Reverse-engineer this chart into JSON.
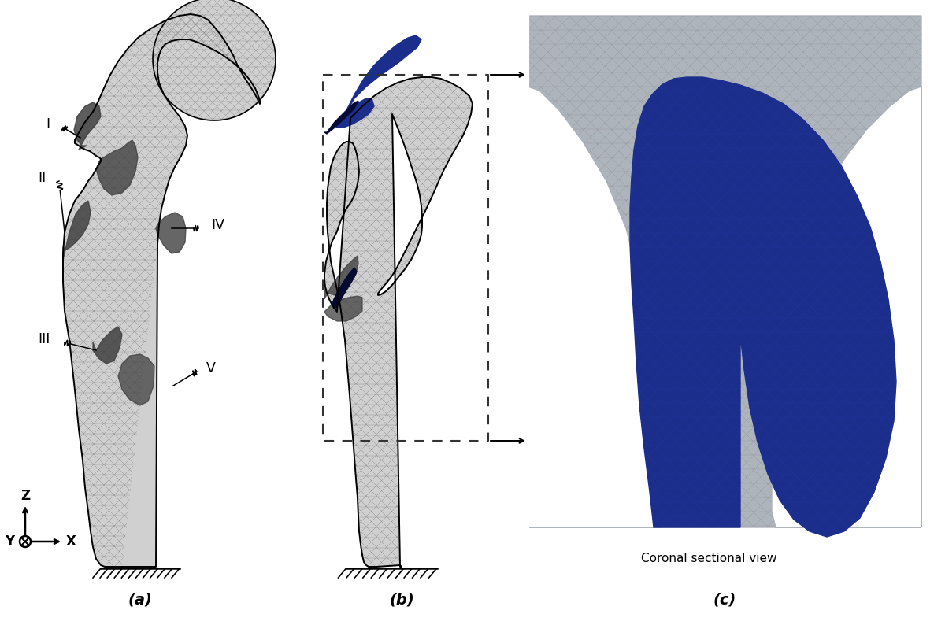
{
  "figure_width": 12.0,
  "figure_height": 7.94,
  "background_color": "#ffffff",
  "label_a": "(a)",
  "label_b": "(b)",
  "label_c": "(c)",
  "labels_fontsize": 14,
  "region_labels": [
    "I",
    "II",
    "III",
    "IV",
    "V"
  ],
  "annotation_text": "Coronal sectional view",
  "bone_fill": "#d0d0d0",
  "bone_dark": "#404040",
  "bone_mid": "#787878",
  "bone_light_gray": "#c0c0c0",
  "implant_blue": "#1c2e8c",
  "implant_blue_dark": "#0f1a5c",
  "mesh_lc": "#444444",
  "mesh_lw": 0.25,
  "mesh_alpha": 0.55,
  "panel_c_bg": "#aeb4bc",
  "panel_c_bone": "#9ca2aa",
  "panel_c_bone_dark": "#888e95"
}
